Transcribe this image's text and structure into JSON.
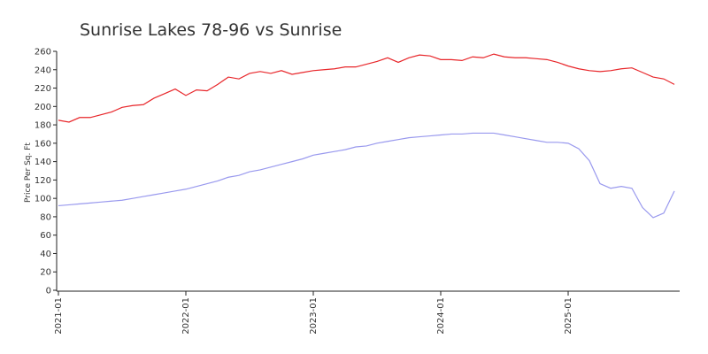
{
  "chart_data": {
    "type": "line",
    "title": "Sunrise Lakes 78-96 vs Sunrise",
    "y_label": "Price Per Sq. Ft",
    "x": [
      "2021-01",
      "2021-02",
      "2021-03",
      "2021-04",
      "2021-05",
      "2021-06",
      "2021-07",
      "2021-08",
      "2021-09",
      "2021-10",
      "2021-11",
      "2021-12",
      "2022-01",
      "2022-02",
      "2022-03",
      "2022-04",
      "2022-05",
      "2022-06",
      "2022-07",
      "2022-08",
      "2022-09",
      "2022-10",
      "2022-11",
      "2022-12",
      "2023-01",
      "2023-02",
      "2023-03",
      "2023-04",
      "2023-05",
      "2023-06",
      "2023-07",
      "2023-08",
      "2023-09",
      "2023-10",
      "2023-11",
      "2023-12",
      "2024-01",
      "2024-02",
      "2024-03",
      "2024-04",
      "2024-05",
      "2024-06",
      "2024-07",
      "2024-08",
      "2024-09",
      "2024-10",
      "2024-11",
      "2024-12",
      "2025-01",
      "2025-02",
      "2025-03",
      "2025-04",
      "2025-05",
      "2025-06",
      "2025-07",
      "2025-08",
      "2025-09",
      "2025-10",
      "2025-11"
    ],
    "series": [
      {
        "color": "#e8262a",
        "values": [
          185,
          183,
          188,
          188,
          191,
          194,
          199,
          201,
          202,
          209,
          214,
          219,
          212,
          218,
          217,
          224,
          232,
          230,
          236,
          238,
          236,
          239,
          235,
          237,
          239,
          240,
          241,
          243,
          243,
          246,
          249,
          253,
          248,
          253,
          256,
          255,
          251,
          251,
          250,
          254,
          253,
          257,
          254,
          253,
          253,
          252,
          251,
          248,
          244,
          241,
          239,
          238,
          239,
          241,
          242,
          237,
          232,
          230,
          224
        ]
      },
      {
        "color": "#9999ee",
        "values": [
          92,
          93,
          94,
          95,
          96,
          97,
          98,
          100,
          102,
          104,
          106,
          108,
          110,
          113,
          116,
          119,
          123,
          125,
          129,
          131,
          134,
          137,
          140,
          143,
          147,
          149,
          151,
          153,
          156,
          157,
          160,
          162,
          164,
          166,
          167,
          168,
          169,
          170,
          170,
          171,
          171,
          171,
          169,
          167,
          165,
          163,
          161,
          161,
          160,
          154,
          141,
          116,
          111,
          113,
          111,
          90,
          79,
          84,
          108
        ]
      }
    ],
    "ylim": [
      0,
      260
    ],
    "yticks": [
      0,
      20,
      40,
      60,
      80,
      100,
      120,
      140,
      160,
      180,
      200,
      220,
      240,
      260
    ],
    "xticks": [
      "2021-01",
      "2022-01",
      "2023-01",
      "2024-01",
      "2025-01"
    ]
  }
}
